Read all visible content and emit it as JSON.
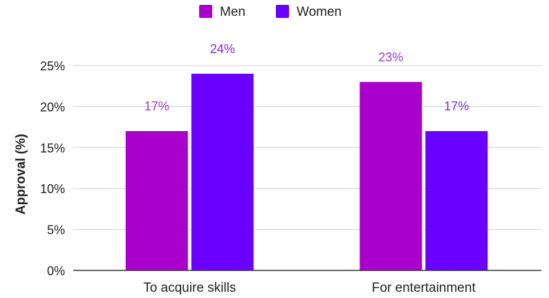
{
  "chart_data": {
    "type": "bar",
    "title": "",
    "xlabel": "",
    "ylabel": "Approval (%)",
    "categories": [
      "To acquire skills",
      "For entertainment"
    ],
    "series": [
      {
        "name": "Men",
        "values": [
          17,
          23
        ],
        "color": "#aa00cc",
        "label_color": "#a337c9"
      },
      {
        "name": "Women",
        "values": [
          24,
          17
        ],
        "color": "#6a00ff",
        "label_color": "#7a2ce0"
      }
    ],
    "ylim": [
      0,
      25
    ],
    "yticks": [
      0,
      5,
      10,
      15,
      20,
      25
    ],
    "tick_suffix": "%",
    "data_labels": [
      [
        "17%",
        "23%"
      ],
      [
        "24%",
        "17%"
      ]
    ],
    "grid": true,
    "legend_position": "top-center"
  }
}
